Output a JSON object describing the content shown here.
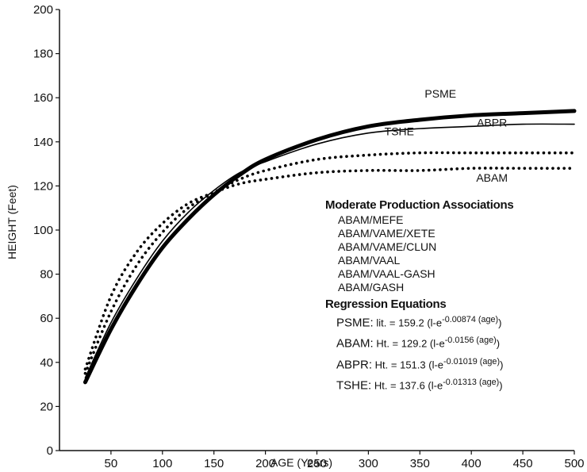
{
  "chart_data": {
    "type": "line",
    "title": "",
    "xlabel": "AGE (Years)",
    "ylabel": "HEIGHT (Feet)",
    "xlim": [
      0,
      500
    ],
    "ylim": [
      0,
      200
    ],
    "x_ticks": [
      "50",
      "100",
      "150",
      "200",
      "250",
      "300",
      "350",
      "400",
      "450",
      "500"
    ],
    "y_ticks": [
      "0",
      "20",
      "40",
      "60",
      "80",
      "100",
      "120",
      "140",
      "160",
      "180",
      "200"
    ],
    "x": [
      25,
      50,
      75,
      100,
      125,
      150,
      175,
      200,
      250,
      300,
      350,
      400,
      450,
      500
    ],
    "series": [
      {
        "name": "PSME",
        "style": "solid-thick",
        "color": "#000000",
        "values": [
          31,
          55,
          75,
          92,
          105,
          116,
          125,
          132,
          141,
          147,
          150,
          152,
          153,
          154
        ]
      },
      {
        "name": "ABPR",
        "style": "solid-thin",
        "color": "#000000",
        "values": [
          33,
          58,
          78,
          95,
          108,
          118,
          126,
          131,
          139,
          144,
          146,
          147,
          148,
          148
        ]
      },
      {
        "name": "TSHE",
        "style": "dotted-thick",
        "color": "#000000",
        "values": [
          35,
          63,
          84,
          99,
          110,
          117,
          123,
          127,
          132,
          134,
          135,
          135,
          135,
          135
        ]
      },
      {
        "name": "ABAM",
        "style": "dotted-thick",
        "color": "#000000",
        "values": [
          37,
          70,
          90,
          103,
          112,
          117,
          121,
          123,
          126,
          127,
          127,
          128,
          128,
          128
        ]
      }
    ],
    "series_labels": [
      {
        "text": "PSME",
        "x": 370,
        "y": 160
      },
      {
        "text": "ABPR",
        "x": 420,
        "y": 147
      },
      {
        "text": "TSHE",
        "x": 330,
        "y": 143
      },
      {
        "text": "ABAM",
        "x": 420,
        "y": 122
      }
    ],
    "legend": {
      "heading": "Moderate Production Associations",
      "items": [
        "ABAM/MEFE",
        "ABAM/VAME/XETE",
        "ABAM/VAME/CLUN",
        "ABAM/VAAL",
        "ABAM/VAAL-GASH",
        "ABAM/GASH"
      ]
    },
    "equations": {
      "heading": "Regression Equations",
      "items": [
        {
          "name": "PSME:",
          "lhs": "lit. =",
          "coef": "159.2",
          "exponent": "-0.00874 (age)"
        },
        {
          "name": "ABAM:",
          "lhs": "Ht. =",
          "coef": "129.2",
          "exponent": "-0.0156 (age)"
        },
        {
          "name": "ABPR:",
          "lhs": "Ht. =",
          "coef": "151.3",
          "exponent": "-0.01019 (age)"
        },
        {
          "name": "TSHE:",
          "lhs": "Ht. =",
          "coef": "137.6",
          "exponent": "-0.01313 (age)"
        }
      ]
    }
  }
}
